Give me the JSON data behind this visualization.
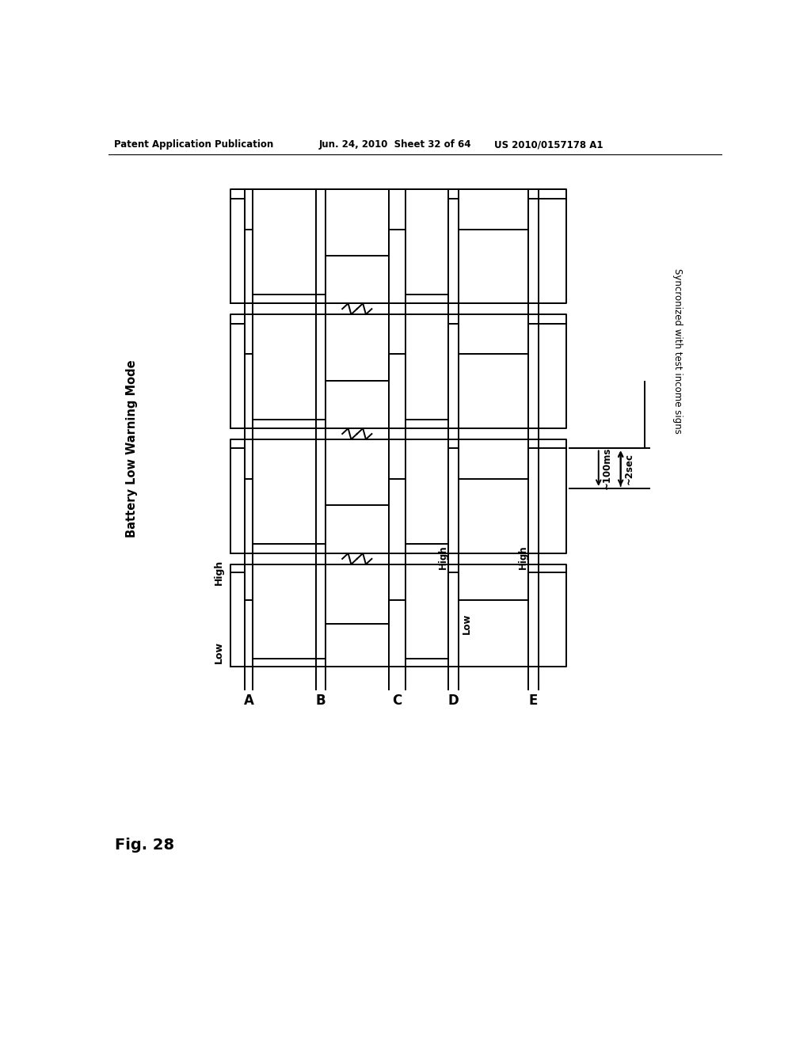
{
  "title_header": "Patent Application Publication",
  "header_date": "Jun. 24, 2010  Sheet 32 of 64",
  "header_patent": "US 2010/0157178 A1",
  "fig_label": "Fig. 28",
  "main_label": "Battery Low Warning Mode",
  "signal_labels": [
    "A",
    "B",
    "C",
    "D",
    "E"
  ],
  "annotation_100ms": "~100ms",
  "annotation_2sec": "~2sec",
  "annotation_sync": "Syncronized with test income signs",
  "high_label": "High",
  "low_label": "Low",
  "bg_color": "#ffffff",
  "line_color": "#000000",
  "lw": 1.4,
  "header_lw": 0.8
}
